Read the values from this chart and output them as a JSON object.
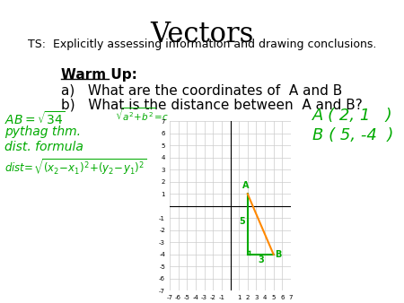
{
  "title": "Vectors",
  "subtitle": "TS:  Explicitly assessing information and drawing conclusions.",
  "warm_up_label": "Warm Up:",
  "item_a": "a)   What are the coordinates of  A and B",
  "item_b": "b)   What is the distance between  A and B?",
  "bg_color": "#ffffff",
  "title_fontsize": 22,
  "subtitle_fontsize": 9,
  "body_fontsize": 11,
  "graph_xlim": [
    -7,
    7
  ],
  "graph_ylim": [
    -7,
    7
  ],
  "point_A": [
    2,
    1
  ],
  "point_B": [
    5,
    -4
  ],
  "grid_color": "#cccccc",
  "axis_color": "#000000",
  "green_color": "#00aa00",
  "orange_color": "#ff8800"
}
